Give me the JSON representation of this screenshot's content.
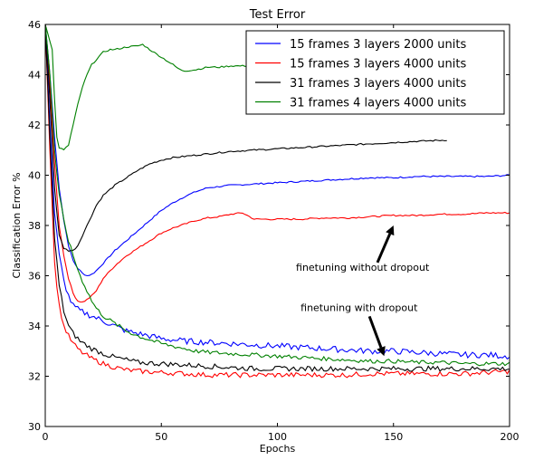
{
  "chart_data": {
    "type": "line",
    "title": "Test Error",
    "xlabel": "Epochs",
    "ylabel": "Classification Error %",
    "xlim": [
      0,
      200
    ],
    "ylim": [
      30,
      46
    ],
    "xticks": [
      0,
      50,
      100,
      150,
      200
    ],
    "yticks": [
      30,
      32,
      34,
      36,
      38,
      40,
      42,
      44,
      46
    ],
    "grid": false,
    "legend_position": "top-right",
    "series": [
      {
        "name": "15 frames 3 layers 2000 units",
        "color": "#0000ff",
        "points": [
          [
            0,
            46
          ],
          [
            2,
            44
          ],
          [
            4,
            41.5
          ],
          [
            6,
            39.5
          ],
          [
            8,
            38.2
          ],
          [
            10,
            37.2
          ],
          [
            12,
            36.6
          ],
          [
            14,
            36.3
          ],
          [
            16,
            36.1
          ],
          [
            18,
            36.0
          ],
          [
            20,
            36.05
          ],
          [
            22,
            36.2
          ],
          [
            25,
            36.5
          ],
          [
            30,
            37
          ],
          [
            35,
            37.4
          ],
          [
            40,
            37.8
          ],
          [
            45,
            38.2
          ],
          [
            50,
            38.6
          ],
          [
            55,
            38.9
          ],
          [
            60,
            39.15
          ],
          [
            65,
            39.35
          ],
          [
            70,
            39.5
          ],
          [
            75,
            39.55
          ],
          [
            80,
            39.6
          ],
          [
            90,
            39.65
          ],
          [
            100,
            39.7
          ],
          [
            110,
            39.75
          ],
          [
            120,
            39.8
          ],
          [
            130,
            39.85
          ],
          [
            140,
            39.9
          ],
          [
            150,
            39.9
          ],
          [
            160,
            39.95
          ],
          [
            170,
            39.95
          ],
          [
            180,
            39.95
          ],
          [
            190,
            39.95
          ],
          [
            200,
            40.0
          ]
        ]
      },
      {
        "name": "15 frames 3 layers 4000 units",
        "color": "#ff0000",
        "points": [
          [
            0,
            46
          ],
          [
            2,
            43.5
          ],
          [
            4,
            40.5
          ],
          [
            6,
            38
          ],
          [
            8,
            36.8
          ],
          [
            10,
            35.9
          ],
          [
            12,
            35.3
          ],
          [
            14,
            35.0
          ],
          [
            16,
            34.95
          ],
          [
            18,
            35.05
          ],
          [
            20,
            35.2
          ],
          [
            22,
            35.4
          ],
          [
            25,
            35.9
          ],
          [
            30,
            36.4
          ],
          [
            35,
            36.8
          ],
          [
            40,
            37.1
          ],
          [
            45,
            37.4
          ],
          [
            50,
            37.7
          ],
          [
            55,
            37.9
          ],
          [
            60,
            38.05
          ],
          [
            65,
            38.2
          ],
          [
            70,
            38.3
          ],
          [
            75,
            38.35
          ],
          [
            80,
            38.45
          ],
          [
            85,
            38.5
          ],
          [
            88,
            38.35
          ],
          [
            90,
            38.25
          ],
          [
            95,
            38.25
          ],
          [
            100,
            38.25
          ],
          [
            110,
            38.25
          ],
          [
            120,
            38.3
          ],
          [
            130,
            38.3
          ],
          [
            140,
            38.35
          ],
          [
            150,
            38.4
          ],
          [
            160,
            38.4
          ],
          [
            170,
            38.45
          ],
          [
            180,
            38.45
          ],
          [
            190,
            38.5
          ],
          [
            200,
            38.5
          ]
        ]
      },
      {
        "name": "31 frames 3 layers 4000 units",
        "color": "#000000",
        "points": [
          [
            0,
            46
          ],
          [
            2,
            43
          ],
          [
            4,
            39.5
          ],
          [
            6,
            37.6
          ],
          [
            8,
            37.1
          ],
          [
            10,
            37.0
          ],
          [
            12,
            37.0
          ],
          [
            14,
            37.2
          ],
          [
            16,
            37.6
          ],
          [
            18,
            38.0
          ],
          [
            20,
            38.4
          ],
          [
            22,
            38.8
          ],
          [
            25,
            39.2
          ],
          [
            30,
            39.6
          ],
          [
            35,
            39.9
          ],
          [
            40,
            40.2
          ],
          [
            45,
            40.45
          ],
          [
            50,
            40.6
          ],
          [
            55,
            40.7
          ],
          [
            60,
            40.75
          ],
          [
            65,
            40.8
          ],
          [
            70,
            40.85
          ],
          [
            80,
            40.95
          ],
          [
            90,
            41.0
          ],
          [
            100,
            41.05
          ],
          [
            110,
            41.1
          ],
          [
            120,
            41.15
          ],
          [
            130,
            41.2
          ],
          [
            140,
            41.25
          ],
          [
            150,
            41.3
          ],
          [
            160,
            41.35
          ],
          [
            173,
            41.4
          ]
        ]
      },
      {
        "name": "31 frames 4 layers 4000 units",
        "color": "#008000",
        "points": [
          [
            0,
            46
          ],
          [
            3,
            45
          ],
          [
            4,
            43
          ],
          [
            5,
            41.5
          ],
          [
            6,
            41.1
          ],
          [
            8,
            41.0
          ],
          [
            10,
            41.2
          ],
          [
            12,
            42.0
          ],
          [
            14,
            42.8
          ],
          [
            16,
            43.5
          ],
          [
            18,
            44.0
          ],
          [
            20,
            44.4
          ],
          [
            22,
            44.6
          ],
          [
            25,
            44.9
          ],
          [
            28,
            45.0
          ],
          [
            30,
            45.0
          ],
          [
            35,
            45.1
          ],
          [
            40,
            45.15
          ],
          [
            42,
            45.2
          ],
          [
            45,
            45.0
          ],
          [
            50,
            44.7
          ],
          [
            55,
            44.4
          ],
          [
            58,
            44.2
          ],
          [
            60,
            44.15
          ],
          [
            65,
            44.2
          ],
          [
            70,
            44.3
          ],
          [
            75,
            44.3
          ],
          [
            80,
            44.35
          ],
          [
            88,
            44.35
          ]
        ]
      },
      {
        "name": "15 frames 3 layers 2000 units (dropout)",
        "color": "#0000ff",
        "points": [
          [
            0,
            46
          ],
          [
            2,
            42
          ],
          [
            4,
            38.5
          ],
          [
            6,
            36.8
          ],
          [
            8,
            35.8
          ],
          [
            10,
            35.2
          ],
          [
            12,
            34.8
          ],
          [
            15,
            34.6
          ],
          [
            20,
            34.4
          ],
          [
            25,
            34.2
          ],
          [
            30,
            34.0
          ],
          [
            35,
            33.8
          ],
          [
            40,
            33.7
          ],
          [
            45,
            33.6
          ],
          [
            50,
            33.5
          ],
          [
            55,
            33.45
          ],
          [
            60,
            33.4
          ],
          [
            70,
            33.35
          ],
          [
            80,
            33.3
          ],
          [
            90,
            33.25
          ],
          [
            100,
            33.2
          ],
          [
            110,
            33.15
          ],
          [
            120,
            33.1
          ],
          [
            130,
            33.05
          ],
          [
            140,
            33.0
          ],
          [
            150,
            33.0
          ],
          [
            160,
            32.95
          ],
          [
            170,
            32.9
          ],
          [
            180,
            32.85
          ],
          [
            190,
            32.85
          ],
          [
            200,
            32.8
          ]
        ],
        "noise": 0.12
      },
      {
        "name": "15 frames 3 layers 4000 units (dropout)",
        "color": "#ff0000",
        "points": [
          [
            0,
            46
          ],
          [
            2,
            41
          ],
          [
            4,
            36.5
          ],
          [
            6,
            34.8
          ],
          [
            8,
            34.0
          ],
          [
            10,
            33.6
          ],
          [
            12,
            33.3
          ],
          [
            15,
            33.0
          ],
          [
            20,
            32.7
          ],
          [
            25,
            32.5
          ],
          [
            30,
            32.35
          ],
          [
            35,
            32.25
          ],
          [
            40,
            32.2
          ],
          [
            50,
            32.15
          ],
          [
            60,
            32.1
          ],
          [
            70,
            32.05
          ],
          [
            80,
            32.05
          ],
          [
            90,
            32.05
          ],
          [
            100,
            32.05
          ],
          [
            110,
            32.05
          ],
          [
            120,
            32.05
          ],
          [
            130,
            32.05
          ],
          [
            140,
            32.1
          ],
          [
            150,
            32.1
          ],
          [
            160,
            32.1
          ],
          [
            170,
            32.1
          ],
          [
            180,
            32.1
          ],
          [
            190,
            32.15
          ],
          [
            200,
            32.2
          ]
        ],
        "noise": 0.1
      },
      {
        "name": "31 frames 3 layers 4000 units (dropout)",
        "color": "#000000",
        "points": [
          [
            0,
            46
          ],
          [
            2,
            41.5
          ],
          [
            4,
            37.5
          ],
          [
            6,
            35.6
          ],
          [
            8,
            34.6
          ],
          [
            10,
            34.0
          ],
          [
            12,
            33.7
          ],
          [
            15,
            33.4
          ],
          [
            20,
            33.1
          ],
          [
            25,
            32.9
          ],
          [
            30,
            32.75
          ],
          [
            35,
            32.65
          ],
          [
            40,
            32.55
          ],
          [
            50,
            32.5
          ],
          [
            60,
            32.45
          ],
          [
            70,
            32.4
          ],
          [
            80,
            32.35
          ],
          [
            90,
            32.3
          ],
          [
            100,
            32.3
          ],
          [
            110,
            32.3
          ],
          [
            120,
            32.3
          ],
          [
            130,
            32.3
          ],
          [
            140,
            32.3
          ],
          [
            150,
            32.3
          ],
          [
            160,
            32.3
          ],
          [
            170,
            32.3
          ],
          [
            180,
            32.3
          ],
          [
            190,
            32.3
          ],
          [
            200,
            32.3
          ]
        ],
        "noise": 0.1
      },
      {
        "name": "31 frames 4 layers 4000 units (dropout)",
        "color": "#008000",
        "points": [
          [
            0,
            46
          ],
          [
            2,
            44
          ],
          [
            4,
            41
          ],
          [
            6,
            39.2
          ],
          [
            8,
            38.2
          ],
          [
            10,
            37.4
          ],
          [
            12,
            36.8
          ],
          [
            15,
            36.0
          ],
          [
            18,
            35.4
          ],
          [
            20,
            35.0
          ],
          [
            22,
            34.7
          ],
          [
            25,
            34.4
          ],
          [
            30,
            34.1
          ],
          [
            35,
            33.8
          ],
          [
            40,
            33.6
          ],
          [
            45,
            33.45
          ],
          [
            50,
            33.3
          ],
          [
            55,
            33.2
          ],
          [
            60,
            33.1
          ],
          [
            65,
            33.0
          ],
          [
            70,
            32.95
          ],
          [
            80,
            32.9
          ],
          [
            90,
            32.85
          ],
          [
            100,
            32.8
          ],
          [
            110,
            32.75
          ],
          [
            120,
            32.7
          ],
          [
            130,
            32.65
          ],
          [
            140,
            32.6
          ],
          [
            150,
            32.6
          ],
          [
            160,
            32.55
          ],
          [
            170,
            32.55
          ],
          [
            180,
            32.5
          ],
          [
            190,
            32.5
          ],
          [
            200,
            32.5
          ]
        ],
        "noise": 0.08
      }
    ],
    "legend_entries": [
      {
        "label": "15 frames 3 layers 2000 units",
        "color": "#0000ff"
      },
      {
        "label": "15 frames 3 layers 4000 units",
        "color": "#ff0000"
      },
      {
        "label": "31 frames 3 layers 4000 units",
        "color": "#000000"
      },
      {
        "label": "31 frames 4 layers 4000 units",
        "color": "#008000"
      }
    ],
    "annotations": [
      {
        "text": "finetuning without dropout",
        "x": 150,
        "y": 38.0,
        "text_x": 108,
        "text_y": 36.2
      },
      {
        "text": "finetuning with dropout",
        "x": 146,
        "y": 32.8,
        "text_x": 110,
        "text_y": 34.6
      }
    ]
  }
}
